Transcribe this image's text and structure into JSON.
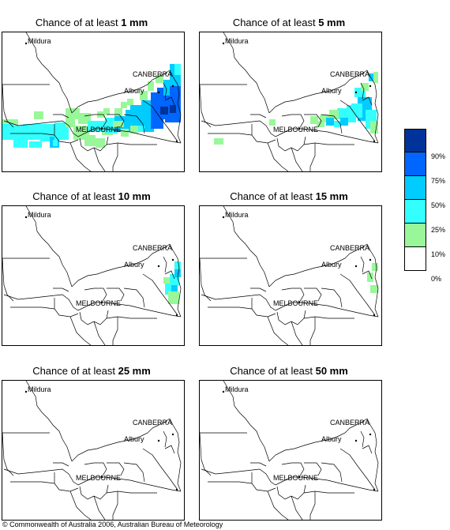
{
  "colors": {
    "p10": "#99f799",
    "p25": "#33ffff",
    "p50": "#00ccff",
    "p75": "#0066ff",
    "p90": "#003399",
    "border": "#000000",
    "background": "#ffffff"
  },
  "places": {
    "mildura": "Mildura",
    "canberra": "CANBERRA",
    "albury": "Albury",
    "melbourne": "MELBOURNE"
  },
  "panels": [
    {
      "prefix": "Chance of at least ",
      "amount": "1 mm"
    },
    {
      "prefix": "Chance of at least ",
      "amount": "5 mm"
    },
    {
      "prefix": "Chance of at least ",
      "amount": "10 mm"
    },
    {
      "prefix": "Chance of at least ",
      "amount": "15 mm"
    },
    {
      "prefix": "Chance of at least ",
      "amount": "25 mm"
    },
    {
      "prefix": "Chance of at least ",
      "amount": "50 mm"
    }
  ],
  "legend": {
    "labels": [
      "90%",
      "75%",
      "50%",
      "25%",
      "10%",
      "0%"
    ]
  },
  "copyright": "© Commonwealth of Australia 2006, Australian Bureau of Meteorology"
}
